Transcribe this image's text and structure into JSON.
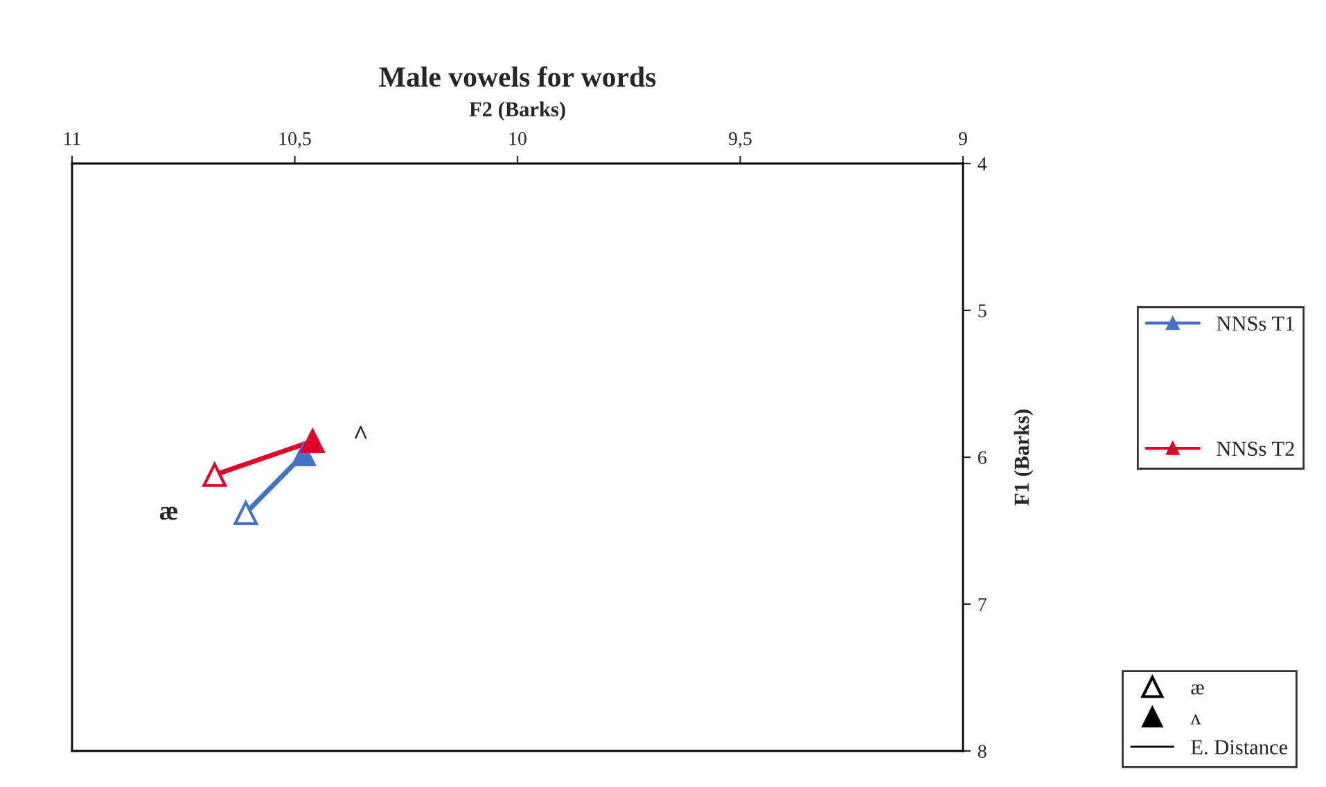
{
  "chart_data": {
    "type": "line",
    "title": "Male vowels for words",
    "xlabel": "F2 (Barks)",
    "ylabel": "F1 (Barks)",
    "series": [
      {
        "name": "NNSs T1",
        "color": "#4472c4",
        "x": [
          10.61,
          10.48
        ],
        "values": [
          6.38,
          5.98
        ]
      },
      {
        "name": "NNSs T2",
        "color": "#e0002a",
        "x": [
          10.68,
          10.46
        ],
        "values": [
          6.12,
          5.89
        ]
      }
    ],
    "xlim": [
      11,
      9
    ],
    "xticks": [
      11,
      {
        "value": 10.5,
        "label": "10,5"
      },
      10,
      {
        "value": 9.5,
        "label": "9,5"
      },
      9
    ],
    "ylim": [
      8,
      4
    ],
    "yticks": [
      4,
      5,
      6,
      7,
      8
    ],
    "annotations": [
      {
        "text": "æ",
        "x": 10.61,
        "y": 6.38
      },
      {
        "text": "^",
        "x": 10.46,
        "y": 5.89
      },
      "æ",
      "ʌ",
      "E. Distance"
    ],
    "marker": "triangle",
    "legend": "right",
    "grid": false
  }
}
